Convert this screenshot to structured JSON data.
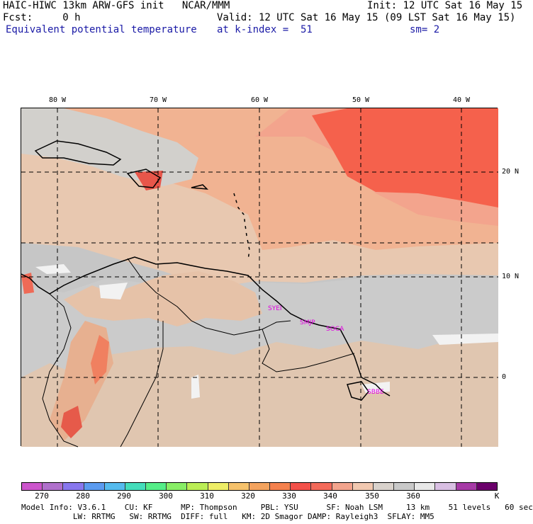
{
  "header": {
    "line1_left": "HAIC-HIWC 13km ARW-GFS init   NCAR/MMM",
    "line1_right": "Init: 12 UTC Sat 16 May 15",
    "line2_left": "Fcst:     0 h",
    "line2_right": "Valid: 12 UTC Sat 16 May 15 (09 LST Sat 16 May 15)",
    "line3_left": "Equivalent potential temperature",
    "line3_mid": "at k-index =  51",
    "line3_right": "sm= 2"
  },
  "map": {
    "lon_labels": [
      "80 W",
      "70 W",
      "60 W",
      "50 W",
      "40 W"
    ],
    "lat_labels": [
      "20 N",
      "10 N",
      "0"
    ],
    "stations": [
      {
        "name": "SYEI"
      },
      {
        "name": "SMJP"
      },
      {
        "name": "SOCA"
      },
      {
        "name": "SBBE"
      }
    ],
    "field_colors": {
      "grey_low": "#bdbdbd",
      "grey_mid": "#cfcfcf",
      "tan": "#e8c8b0",
      "peach": "#f1b392",
      "salmon": "#f59b7d",
      "red": "#f5614c",
      "white": "#f2f2f2"
    }
  },
  "colorbar": {
    "colors": [
      "#cc55cc",
      "#b070cc",
      "#8877ee",
      "#5b9bf0",
      "#55bbee",
      "#44ddbb",
      "#55ee88",
      "#88ee66",
      "#bbee55",
      "#eeee66",
      "#f6c26b",
      "#f4a35e",
      "#f5814e",
      "#f3514a",
      "#f46a5a",
      "#f3a48d",
      "#f1c8b0",
      "#d9d2cc",
      "#c9c9c9",
      "#e8e8e8",
      "#d9bfe3",
      "#a63aa6",
      "#6b006b"
    ],
    "labels": [
      "270",
      "280",
      "290",
      "300",
      "310",
      "320",
      "330",
      "340",
      "350",
      "360",
      "K"
    ]
  },
  "footer": {
    "line1": "Model Info: V3.6.1    CU: KF      MP: Thompson     PBL: YSU      SF: Noah LSM     13 km    51 levels   60 sec",
    "line2": "           LW: RRTMG   SW: RRTMG  DIFF: full   KM: 2D Smagor DAMP: Rayleigh3  SFLAY: MM5"
  }
}
